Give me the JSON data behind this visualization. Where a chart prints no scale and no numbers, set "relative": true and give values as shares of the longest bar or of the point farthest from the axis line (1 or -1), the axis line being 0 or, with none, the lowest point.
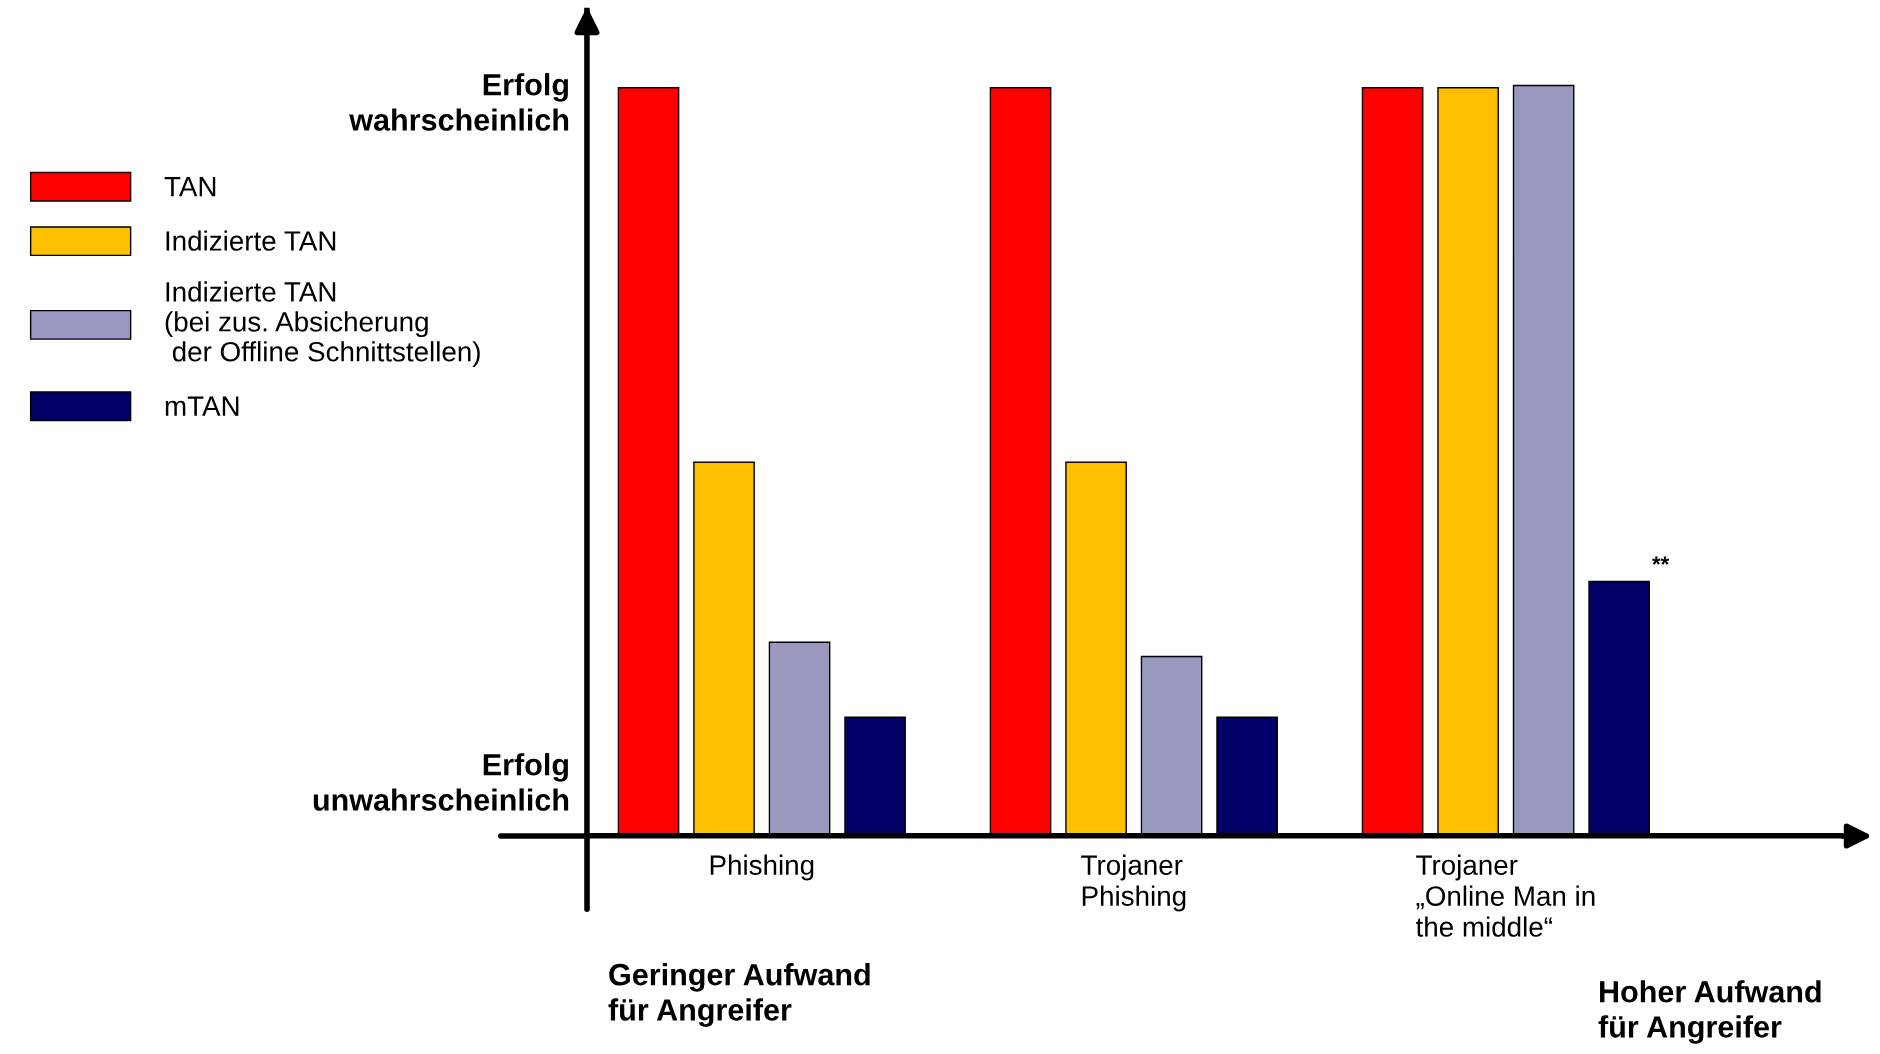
{
  "chart_data": {
    "type": "bar",
    "relative": true,
    "categories": [
      "Phishing",
      "Trojaner\nPhishing",
      "Trojaner\n„Online Man in\nthe middle“"
    ],
    "series": [
      {
        "name": "TAN",
        "color": "#ff0000",
        "values": [
          0.997,
          0.997,
          0.997
        ]
      },
      {
        "name": "Indizierte TAN",
        "color": "#ffc000",
        "values": [
          0.498,
          0.498,
          0.997
        ]
      },
      {
        "name": "Indizierte TAN\n(bei zus. Absicherung\n der Offline Schnittstellen)",
        "color": "#9999c0",
        "values": [
          0.258,
          0.239,
          1
        ]
      },
      {
        "name": "mTAN",
        "color": "#000066",
        "values": [
          0.158,
          0.158,
          0.339
        ]
      }
    ],
    "annotations": [
      "Erfolg\nwahrscheinlich",
      "Erfolg\nunwahrscheinlich",
      "Geringer Aufwand\nfür Angreifer",
      "Hoher Aufwand\nfür Angreifer",
      "**"
    ],
    "legend": "left"
  }
}
